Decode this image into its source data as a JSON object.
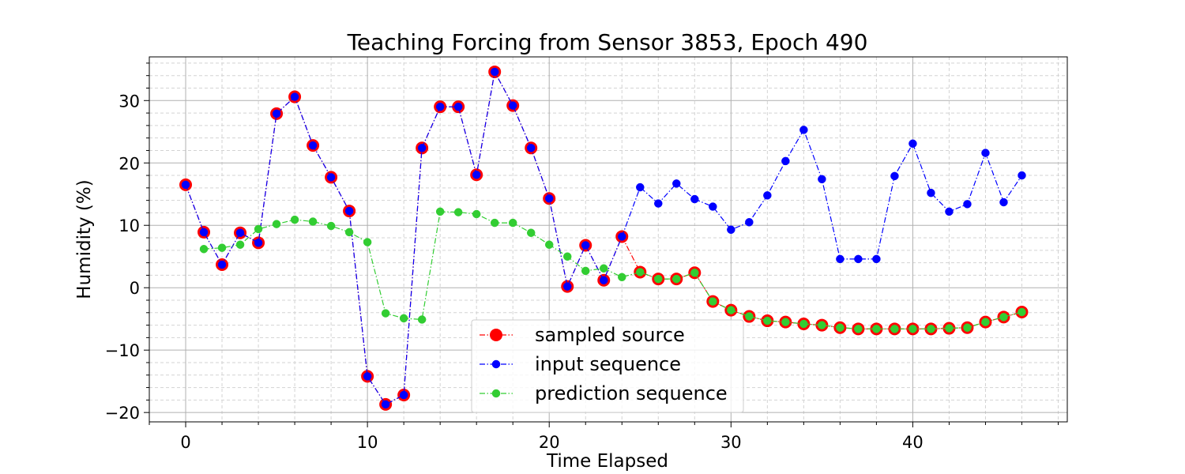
{
  "chart_data": {
    "type": "line",
    "title": "Teaching Forcing from Sensor 3853, Epoch 490",
    "xlabel": "Time Elapsed",
    "ylabel": "Humidity (%)",
    "xlim": [
      -2,
      48.5
    ],
    "ylim": [
      -21.5,
      37
    ],
    "xticks": [
      0,
      10,
      20,
      30,
      40
    ],
    "yticks": [
      -20,
      -10,
      0,
      10,
      20,
      30
    ],
    "grid": true,
    "legend_position": "bottom-center",
    "series": [
      {
        "name": "sampled source",
        "color": "#ff0000",
        "marker": "large-circle",
        "linestyle": "dash-dot",
        "x": [
          0,
          1,
          2,
          3,
          4,
          5,
          6,
          7,
          8,
          9,
          10,
          11,
          12,
          13,
          14,
          15,
          16,
          17,
          18,
          19,
          20,
          21,
          22,
          23,
          24,
          25,
          26,
          27,
          28,
          29,
          30,
          31,
          32,
          33,
          34,
          35,
          36,
          37,
          38,
          39,
          40,
          41,
          42,
          43,
          44,
          45,
          46
        ],
        "values": [
          16.5,
          8.9,
          3.7,
          8.8,
          7.2,
          27.9,
          30.6,
          22.8,
          17.7,
          12.3,
          -14.2,
          -18.7,
          -17.2,
          22.4,
          29.0,
          29.0,
          18.1,
          34.6,
          29.2,
          22.4,
          14.3,
          0.2,
          6.8,
          1.2,
          8.2,
          2.5,
          1.4,
          1.4,
          2.4,
          -2.2,
          -3.6,
          -4.6,
          -5.3,
          -5.5,
          -5.8,
          -6.0,
          -6.4,
          -6.6,
          -6.6,
          -6.6,
          -6.6,
          -6.6,
          -6.5,
          -6.4,
          -5.5,
          -4.7,
          -3.9
        ]
      },
      {
        "name": "input sequence",
        "color": "#0000ff",
        "marker": "circle",
        "linestyle": "dash-dot",
        "x": [
          0,
          1,
          2,
          3,
          4,
          5,
          6,
          7,
          8,
          9,
          10,
          11,
          12,
          13,
          14,
          15,
          16,
          17,
          18,
          19,
          20,
          21,
          22,
          23,
          24,
          25,
          26,
          27,
          28,
          29,
          30,
          31,
          32,
          33,
          34,
          35,
          36,
          37,
          38,
          39,
          40,
          41,
          42,
          43,
          44,
          45,
          46
        ],
        "values": [
          16.5,
          8.9,
          3.7,
          8.8,
          7.2,
          27.9,
          30.6,
          22.8,
          17.7,
          12.3,
          -14.2,
          -18.7,
          -17.2,
          22.4,
          29.0,
          29.0,
          18.1,
          34.6,
          29.2,
          22.4,
          14.3,
          0.2,
          6.8,
          1.2,
          8.2,
          16.1,
          13.5,
          16.7,
          14.2,
          13.0,
          9.3,
          10.5,
          14.8,
          20.3,
          25.3,
          17.4,
          4.6,
          4.6,
          4.6,
          17.9,
          23.1,
          15.2,
          12.2,
          13.4,
          21.6,
          13.7,
          18.0
        ]
      },
      {
        "name": "prediction sequence",
        "color": "#32cd32",
        "marker": "circle",
        "linestyle": "dash-dot",
        "x": [
          1,
          2,
          3,
          4,
          5,
          6,
          7,
          8,
          9,
          10,
          11,
          12,
          13,
          14,
          15,
          16,
          17,
          18,
          19,
          20,
          21,
          22,
          23,
          24,
          25,
          26,
          27,
          28,
          29,
          30,
          31,
          32,
          33,
          34,
          35,
          36,
          37,
          38,
          39,
          40,
          41,
          42,
          43,
          44,
          45,
          46
        ],
        "values": [
          6.2,
          6.4,
          6.9,
          9.4,
          10.2,
          10.9,
          10.6,
          9.9,
          8.9,
          7.3,
          -4.1,
          -4.9,
          -5.1,
          12.2,
          12.1,
          11.8,
          10.4,
          10.4,
          8.8,
          6.9,
          5.0,
          2.7,
          3.1,
          1.7,
          2.5,
          1.4,
          1.4,
          2.4,
          -2.2,
          -3.6,
          -4.6,
          -5.3,
          -5.5,
          -5.8,
          -6.0,
          -6.4,
          -6.6,
          -6.6,
          -6.6,
          -6.6,
          -6.6,
          -6.5,
          -6.4,
          -5.5,
          -4.7,
          -3.9
        ]
      }
    ]
  }
}
